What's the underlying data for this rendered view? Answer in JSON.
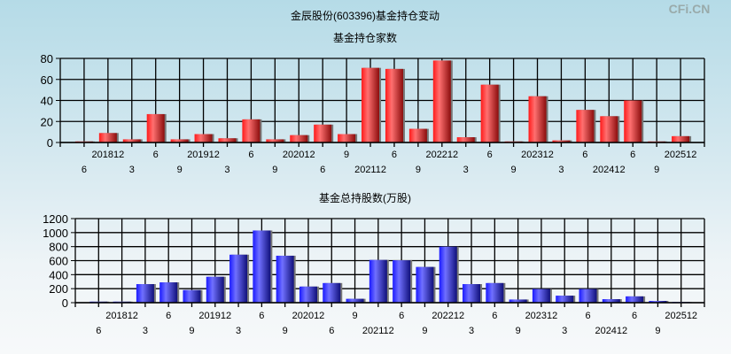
{
  "title": "金辰股份(603396)基金持仓变动",
  "watermark": "CFi.CN",
  "colors": {
    "top_bar": "#e8262b",
    "bottom_bar": "#3a3af0"
  },
  "chart_data": [
    {
      "type": "bar",
      "title": "基金持仓家数",
      "categories": [
        "6",
        "201812",
        "3",
        "6",
        "9",
        "201912",
        "3",
        "6",
        "9",
        "202012",
        "6",
        "9",
        "202112",
        "6",
        "9",
        "202212",
        "3",
        "6",
        "9",
        "202312",
        "3",
        "6",
        "202412",
        "6",
        "9",
        "202512"
      ],
      "values": [
        1,
        9,
        3,
        27,
        3,
        8,
        4,
        22,
        3,
        7,
        17,
        8,
        71,
        70,
        13,
        78,
        5,
        55,
        1,
        44,
        2,
        31,
        25,
        40,
        1,
        6
      ],
      "ylim": [
        0,
        80
      ],
      "yticks": [
        0,
        20,
        40,
        60,
        80
      ],
      "grid": true
    },
    {
      "type": "bar",
      "title": "基金总持股数(万股)",
      "categories": [
        "6",
        "201812",
        "3",
        "6",
        "9",
        "201912",
        "3",
        "6",
        "9",
        "202012",
        "6",
        "9",
        "202112",
        "6",
        "9",
        "202212",
        "3",
        "6",
        "9",
        "202312",
        "3",
        "6",
        "202412",
        "6",
        "9",
        "202512"
      ],
      "values": [
        15,
        15,
        265,
        290,
        180,
        370,
        685,
        1030,
        670,
        230,
        280,
        55,
        610,
        605,
        510,
        800,
        265,
        280,
        45,
        195,
        100,
        195,
        50,
        90,
        25,
        10
      ],
      "ylim": [
        0,
        1200
      ],
      "yticks": [
        0,
        200,
        400,
        600,
        800,
        1000,
        1200
      ],
      "grid": true
    }
  ]
}
